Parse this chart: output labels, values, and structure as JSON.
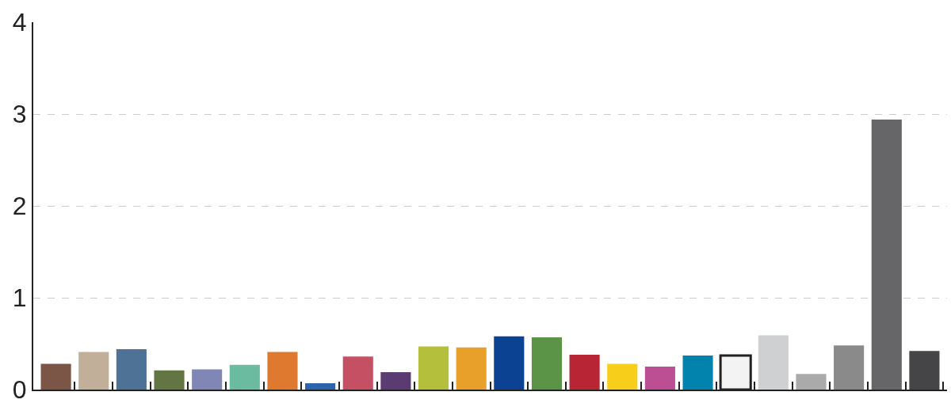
{
  "chart_data": {
    "type": "bar",
    "categories": [
      null,
      null,
      null,
      null,
      null,
      null,
      null,
      null,
      null,
      null,
      null,
      null,
      null,
      null,
      null,
      null,
      null,
      null,
      null,
      null,
      null,
      null,
      null,
      null
    ],
    "values": [
      0.28,
      0.41,
      0.44,
      0.21,
      0.22,
      0.27,
      0.41,
      0.07,
      0.36,
      0.19,
      0.47,
      0.46,
      0.58,
      0.57,
      0.38,
      0.28,
      0.25,
      0.37,
      0.37,
      0.59,
      0.17,
      0.48,
      2.94,
      0.42
    ],
    "colors": [
      "#7b5546",
      "#c2af99",
      "#4e7196",
      "#627543",
      "#8087b7",
      "#6bbba0",
      "#e07930",
      "#2c63ac",
      "#c65063",
      "#5b3c72",
      "#b4c03b",
      "#e8a02b",
      "#0b4392",
      "#5b9446",
      "#b82535",
      "#f7cf1b",
      "#bc4e93",
      "#0283ad",
      "#f3f3f3",
      "#cfd0d2",
      "#aaaaab",
      "#8a8a8b",
      "#666668",
      "#454547"
    ],
    "ylim": [
      0,
      4
    ],
    "yticks": [
      0,
      1,
      2,
      3,
      4
    ],
    "grid": "y"
  }
}
